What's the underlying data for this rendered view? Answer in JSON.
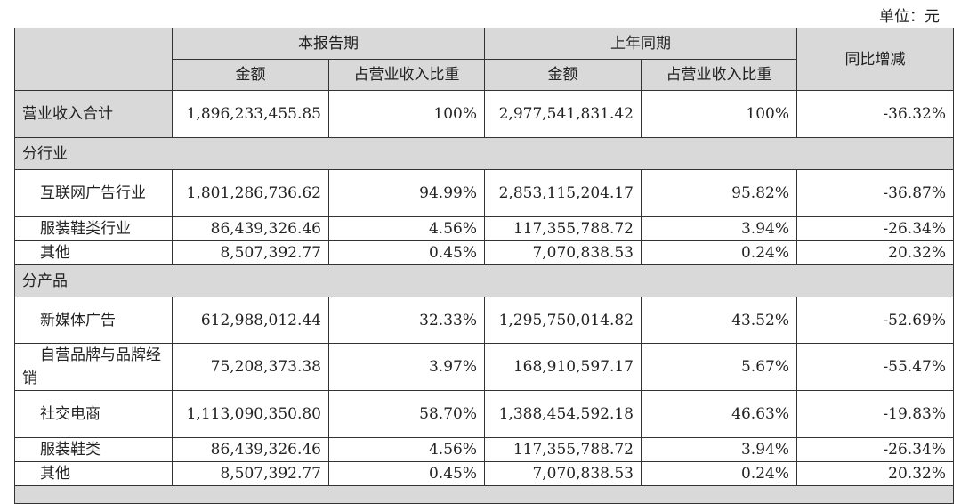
{
  "unit_label": "单位：元",
  "header": {
    "current_period": "本报告期",
    "prior_period": "上年同期",
    "yoy_change": "同比增减",
    "amount": "金额",
    "ratio": "占营业收入比重"
  },
  "total": {
    "label": "营业收入合计",
    "cur_amount": "1,896,233,455.85",
    "cur_ratio": "100%",
    "prior_amount": "2,977,541,831.42",
    "prior_ratio": "100%",
    "yoy": "-36.32%"
  },
  "sections": [
    {
      "title": "分行业",
      "rows": [
        {
          "label": "互联网广告行业",
          "cur_amount": "1,801,286,736.62",
          "cur_ratio": "94.99%",
          "prior_amount": "2,853,115,204.17",
          "prior_ratio": "95.82%",
          "yoy": "-36.87%"
        },
        {
          "label": "服装鞋类行业",
          "cur_amount": "86,439,326.46",
          "cur_ratio": "4.56%",
          "prior_amount": "117,355,788.72",
          "prior_ratio": "3.94%",
          "yoy": "-26.34%"
        },
        {
          "label": "其他",
          "cur_amount": "8,507,392.77",
          "cur_ratio": "0.45%",
          "prior_amount": "7,070,838.53",
          "prior_ratio": "0.24%",
          "yoy": "20.32%"
        }
      ]
    },
    {
      "title": "分产品",
      "rows": [
        {
          "label": "新媒体广告",
          "cur_amount": "612,988,012.44",
          "cur_ratio": "32.33%",
          "prior_amount": "1,295,750,014.82",
          "prior_ratio": "43.52%",
          "yoy": "-52.69%"
        },
        {
          "label": "自营品牌与品牌经销",
          "cur_amount": "75,208,373.38",
          "cur_ratio": "3.97%",
          "prior_amount": "168,910,597.17",
          "prior_ratio": "5.67%",
          "yoy": "-55.47%"
        },
        {
          "label": "社交电商",
          "cur_amount": "1,113,090,350.80",
          "cur_ratio": "58.70%",
          "prior_amount": "1,388,454,592.18",
          "prior_ratio": "46.63%",
          "yoy": "-19.83%"
        },
        {
          "label": "服装鞋类",
          "cur_amount": "86,439,326.46",
          "cur_ratio": "4.56%",
          "prior_amount": "117,355,788.72",
          "prior_ratio": "3.94%",
          "yoy": "-26.34%"
        },
        {
          "label": "其他",
          "cur_amount": "8,507,392.77",
          "cur_ratio": "0.45%",
          "prior_amount": "7,070,838.53",
          "prior_ratio": "0.24%",
          "yoy": "20.32%"
        }
      ]
    }
  ]
}
